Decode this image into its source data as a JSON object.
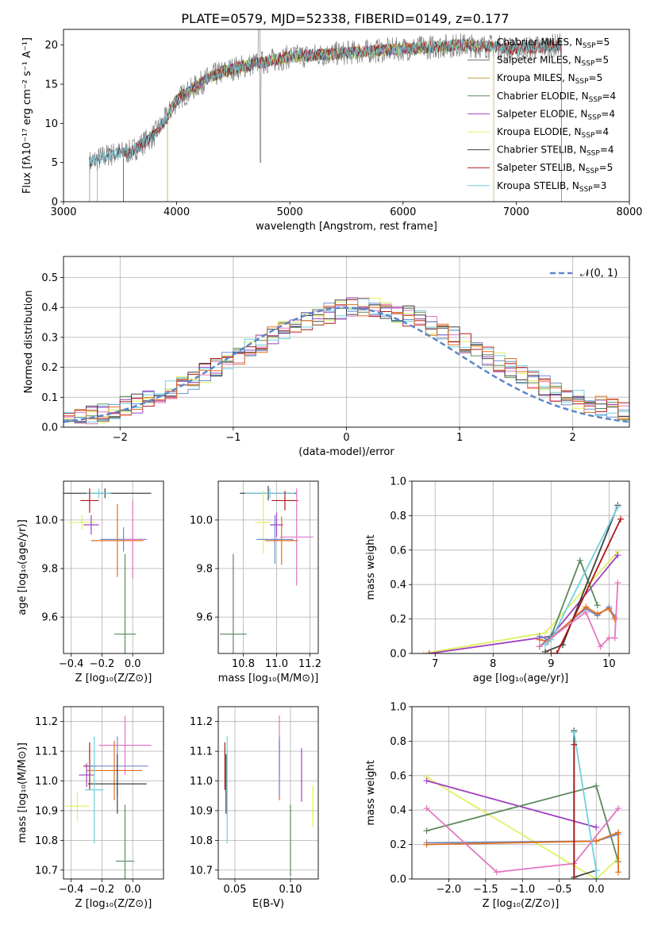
{
  "figure_title": "PLATE=0579, MJD=52338, FIBERID=0149, z=0.177",
  "model_colors": {
    "Chabrier MILES": "#8a8a8a",
    "Salpeter MILES": "#6f6f6f",
    "Kroupa MILES": "#c8a040",
    "Chabrier ELODIE": "#5b8a5b",
    "Salpeter ELODIE": "#a040c0",
    "Kroupa ELODIE": "#e0f060",
    "Chabrier STELIB": "#404040",
    "Salpeter STELIB": "#b01818",
    "Kroupa STELIB": "#70d0e0"
  },
  "chart_data": [
    {
      "id": "spectrum",
      "type": "line",
      "title": "",
      "xlabel": "wavelength [Angstrom, rest frame]",
      "ylabel": "Flux [fλ10⁻¹⁷ erg cm⁻² s⁻¹ A⁻¹]",
      "xlim": [
        3000,
        8000
      ],
      "ylim": [
        0,
        22
      ],
      "xticks": [
        "3000",
        "4000",
        "5000",
        "6000",
        "7000",
        "8000"
      ],
      "yticks": [
        "0",
        "5",
        "10",
        "15",
        "20"
      ],
      "grid": false,
      "legend_position": "top-right",
      "data_envelope": {
        "x": [
          3230,
          3400,
          3600,
          3800,
          3900,
          4000,
          4100,
          4300,
          4500,
          5000,
          5500,
          6000,
          6500,
          6800,
          7000,
          7400
        ],
        "y": [
          5.0,
          6.0,
          6.4,
          8.5,
          10.5,
          13.0,
          14.0,
          16.0,
          17.0,
          18.5,
          19.0,
          19.5,
          20.0,
          19.8,
          19.5,
          20.0
        ]
      },
      "model_x_range": [
        3230,
        7400
      ],
      "series": [
        {
          "name": "Chabrier MILES",
          "label_main": "Chabrier MILES, N",
          "label_sub": "SSP",
          "label_n": "=5",
          "x_start": 3300,
          "x_end": 7400
        },
        {
          "name": "Salpeter MILES",
          "label_main": "Salpeter MILES, N",
          "label_sub": "SSP",
          "label_n": "=5",
          "x_start": 3530,
          "x_end": 7400
        },
        {
          "name": "Kroupa MILES",
          "label_main": "Kroupa MILES, N",
          "label_sub": "SSP",
          "label_n": "=5",
          "x_start": 3920,
          "x_end": 6800
        },
        {
          "name": "Chabrier ELODIE",
          "label_main": "Chabrier ELODIE, N",
          "label_sub": "SSP",
          "label_n": "=4",
          "x_start": 3920,
          "x_end": 6800
        },
        {
          "name": "Salpeter ELODIE",
          "label_main": "Salpeter ELODIE, N",
          "label_sub": "SSP",
          "label_n": "=4",
          "x_start": 3920,
          "x_end": 6800
        },
        {
          "name": "Kroupa ELODIE",
          "label_main": "Kroupa ELODIE, N",
          "label_sub": "SSP",
          "label_n": "=4",
          "x_start": 3920,
          "x_end": 6800
        },
        {
          "name": "Chabrier STELIB",
          "label_main": "Chabrier STELIB, N",
          "label_sub": "SSP",
          "label_n": "=4",
          "x_start": 3230,
          "x_end": 7400
        },
        {
          "name": "Salpeter STELIB",
          "label_main": "Salpeter STELIB, N",
          "label_sub": "SSP",
          "label_n": "=5",
          "x_start": 3530,
          "x_end": 7400
        },
        {
          "name": "Kroupa STELIB",
          "label_main": "Kroupa STELIB, N",
          "label_sub": "SSP",
          "label_n": "=3",
          "x_start": 3230,
          "x_end": 7400
        }
      ]
    },
    {
      "id": "residuals",
      "type": "step",
      "title": "",
      "xlabel": "(data-model)/error",
      "ylabel": "Normed distribution",
      "xlim": [
        -2.5,
        2.5
      ],
      "ylim": [
        0,
        0.57
      ],
      "xticks": [
        "−2",
        "−1",
        "0",
        "1",
        "2"
      ],
      "yticks": [
        "0.0",
        "0.1",
        "0.2",
        "0.3",
        "0.4",
        "0.5"
      ],
      "grid": true,
      "legend_position": "top-right",
      "legend_label": "𝒩(0, 1)",
      "bin_width": 0.1,
      "bin_start": -2.5,
      "base": [
        0.02,
        0.03,
        0.04,
        0.05,
        0.06,
        0.07,
        0.08,
        0.09,
        0.1,
        0.12,
        0.14,
        0.16,
        0.18,
        0.2,
        0.22,
        0.24,
        0.26,
        0.28,
        0.3,
        0.32,
        0.34,
        0.36,
        0.37,
        0.38,
        0.39,
        0.4,
        0.4,
        0.4,
        0.39,
        0.38,
        0.37,
        0.36,
        0.34,
        0.32,
        0.3,
        0.28,
        0.26,
        0.24,
        0.22,
        0.2,
        0.18,
        0.16,
        0.14,
        0.12,
        0.1,
        0.09,
        0.08,
        0.07,
        0.06,
        0.05
      ],
      "series_colors": [
        "#e377c2",
        "#5b8a5b",
        "#e0f060",
        "#a040c0",
        "#b01818",
        "#70d0e0",
        "#6f8fd0",
        "#404040",
        "#e07020"
      ]
    },
    {
      "id": "age_vs_Z",
      "type": "errorbar",
      "title": "",
      "xlabel": "Z [log₁₀(Z/Z⊙)]",
      "ylabel": "age  [log₁₀(age/yr)]",
      "xlim": [
        -0.45,
        0.2
      ],
      "ylim": [
        9.45,
        10.16
      ],
      "xticks": [
        "−0.4",
        "−0.2",
        "0.0"
      ],
      "yticks": [
        "9.6",
        "9.8",
        "10.0"
      ],
      "grid": true,
      "points": [
        {
          "x": -0.18,
          "y": 10.11,
          "ex": 0.3,
          "ey": 0.02,
          "color": "#404040"
        },
        {
          "x": -0.22,
          "y": 10.11,
          "ex": 0.08,
          "ey": 0.02,
          "color": "#70d0e0"
        },
        {
          "x": -0.28,
          "y": 10.08,
          "ex": 0.06,
          "ey": 0.05,
          "color": "#b01818"
        },
        {
          "x": -0.33,
          "y": 9.99,
          "ex": 0.09,
          "ey": 0.03,
          "color": "#e0f060"
        },
        {
          "x": -0.27,
          "y": 9.98,
          "ex": 0.05,
          "ey": 0.04,
          "color": "#a040c0"
        },
        {
          "x": -0.06,
          "y": 9.92,
          "ex": 0.15,
          "ey": 0.05,
          "color": "#6f8fd0"
        },
        {
          "x": -0.1,
          "y": 9.915,
          "ex": 0.17,
          "ey": 0.15,
          "color": "#e07020"
        },
        {
          "x": 0.0,
          "y": 9.92,
          "ex": 0.06,
          "ey": 0.16,
          "color": "#e377c2"
        },
        {
          "x": -0.05,
          "y": 9.53,
          "ex": 0.07,
          "ey": 0.33,
          "color": "#5b8a5b"
        }
      ]
    },
    {
      "id": "age_vs_mass",
      "type": "errorbar",
      "title": "",
      "xlabel": "mass [log₁₀(M/M⊙)]",
      "ylabel": "",
      "xlim": [
        10.65,
        11.25
      ],
      "ylim": [
        9.45,
        10.16
      ],
      "xticks": [
        "10.8",
        "11.0",
        "11.2"
      ],
      "yticks": [
        "9.6",
        "9.8",
        "10.0"
      ],
      "grid": true,
      "points": [
        {
          "x": 10.95,
          "y": 10.11,
          "ex": 0.17,
          "ey": 0.03,
          "color": "#404040"
        },
        {
          "x": 10.96,
          "y": 10.11,
          "ex": 0.15,
          "ey": 0.02,
          "color": "#70d0e0"
        },
        {
          "x": 11.05,
          "y": 10.08,
          "ex": 0.08,
          "ey": 0.04,
          "color": "#b01818"
        },
        {
          "x": 10.92,
          "y": 9.99,
          "ex": 0.05,
          "ey": 0.13,
          "color": "#e0f060"
        },
        {
          "x": 11.0,
          "y": 9.98,
          "ex": 0.04,
          "ey": 0.05,
          "color": "#a040c0"
        },
        {
          "x": 10.99,
          "y": 9.92,
          "ex": 0.11,
          "ey": 0.1,
          "color": "#6f8fd0"
        },
        {
          "x": 11.03,
          "y": 9.915,
          "ex": 0.1,
          "ey": 0.1,
          "color": "#e07020"
        },
        {
          "x": 11.12,
          "y": 9.93,
          "ex": 0.1,
          "ey": 0.2,
          "color": "#e377c2"
        },
        {
          "x": 10.74,
          "y": 9.53,
          "ex": 0.08,
          "ey": 0.33,
          "color": "#5b8a5b"
        }
      ]
    },
    {
      "id": "weight_vs_age",
      "type": "line",
      "title": "",
      "xlabel": "age  [log₁₀(age/yr)]",
      "ylabel": "mass weight",
      "xlim": [
        6.6,
        10.35
      ],
      "ylim": [
        0,
        1
      ],
      "xticks": [
        "7",
        "8",
        "9",
        "10"
      ],
      "yticks": [
        "0.0",
        "0.2",
        "0.4",
        "0.6",
        "0.8",
        "1.0"
      ],
      "grid": true,
      "series": [
        {
          "color": "#e0f060",
          "x": [
            6.8,
            8.9,
            10.15
          ],
          "y": [
            0.0,
            0.12,
            0.59
          ]
        },
        {
          "color": "#a040c0",
          "x": [
            6.9,
            9.0,
            10.15
          ],
          "y": [
            0.0,
            0.1,
            0.57
          ]
        },
        {
          "color": "#6f8fd0",
          "x": [
            8.8,
            8.95,
            9.6,
            9.8,
            10.0,
            10.1
          ],
          "y": [
            0.1,
            0.08,
            0.26,
            0.22,
            0.27,
            0.21
          ]
        },
        {
          "color": "#e07020",
          "x": [
            8.8,
            8.95,
            9.6,
            9.8,
            10.0,
            10.1
          ],
          "y": [
            0.08,
            0.07,
            0.27,
            0.23,
            0.26,
            0.2
          ]
        },
        {
          "color": "#5b8a5b",
          "x": [
            8.8,
            9.0,
            9.5,
            9.8
          ],
          "y": [
            0.04,
            0.1,
            0.54,
            0.28
          ]
        },
        {
          "color": "#404040",
          "x": [
            8.9,
            9.2,
            10.15
          ],
          "y": [
            0.01,
            0.05,
            0.86
          ]
        },
        {
          "color": "#70d0e0",
          "x": [
            8.9,
            9.0,
            10.15
          ],
          "y": [
            0.05,
            0.08,
            0.85
          ]
        },
        {
          "color": "#b01818",
          "x": [
            9.0,
            9.1,
            10.2
          ],
          "y": [
            0.0,
            0.0,
            0.78
          ]
        },
        {
          "color": "#e377c2",
          "x": [
            8.8,
            9.6,
            9.85,
            10.0,
            10.1,
            10.15
          ],
          "y": [
            0.04,
            0.24,
            0.04,
            0.09,
            0.09,
            0.41
          ]
        }
      ]
    },
    {
      "id": "mass_vs_Z",
      "type": "errorbar",
      "title": "",
      "xlabel": "Z [log₁₀(Z/Z⊙)]",
      "ylabel": "mass [log₁₀(M/M⊙)]",
      "xlim": [
        -0.45,
        0.2
      ],
      "ylim": [
        10.67,
        11.25
      ],
      "xticks": [
        "−0.4",
        "−0.2",
        "0.0"
      ],
      "yticks": [
        "10.7",
        "10.8",
        "10.9",
        "11.0",
        "11.1",
        "11.2"
      ],
      "grid": true,
      "points": [
        {
          "x": -0.05,
          "y": 11.12,
          "ex": 0.17,
          "ey": 0.1,
          "color": "#e377c2"
        },
        {
          "x": -0.28,
          "y": 11.05,
          "ex": 0.04,
          "ey": 0.08,
          "color": "#b01818"
        },
        {
          "x": -0.1,
          "y": 11.05,
          "ex": 0.2,
          "ey": 0.1,
          "color": "#6f8fd0"
        },
        {
          "x": -0.12,
          "y": 11.035,
          "ex": 0.18,
          "ey": 0.1,
          "color": "#e07020"
        },
        {
          "x": -0.3,
          "y": 11.02,
          "ex": 0.05,
          "ey": 0.04,
          "color": "#a040c0"
        },
        {
          "x": -0.1,
          "y": 10.99,
          "ex": 0.19,
          "ey": 0.1,
          "color": "#404040"
        },
        {
          "x": -0.25,
          "y": 10.97,
          "ex": 0.06,
          "ey": 0.18,
          "color": "#70d0e0"
        },
        {
          "x": -0.36,
          "y": 10.915,
          "ex": 0.08,
          "ey": 0.05,
          "color": "#e0f060"
        },
        {
          "x": -0.05,
          "y": 10.73,
          "ex": 0.06,
          "ey": 0.19,
          "color": "#5b8a5b"
        }
      ]
    },
    {
      "id": "mass_vs_ebv",
      "type": "errorbar",
      "title": "",
      "xlabel": "E(B-V)",
      "ylabel": "",
      "xlim": [
        0.035,
        0.125
      ],
      "ylim": [
        10.67,
        11.25
      ],
      "xticks": [
        "0.05",
        "0.10"
      ],
      "yticks": [
        "10.7",
        "10.8",
        "10.9",
        "11.0",
        "11.1",
        "11.2"
      ],
      "grid": true,
      "points": [
        {
          "x": 0.041,
          "y": 11.05,
          "ex": 0.0,
          "ey": 0.08,
          "color": "#b01818"
        },
        {
          "x": 0.042,
          "y": 10.99,
          "ex": 0.0,
          "ey": 0.1,
          "color": "#404040"
        },
        {
          "x": 0.043,
          "y": 10.97,
          "ex": 0.0,
          "ey": 0.18,
          "color": "#70d0e0"
        },
        {
          "x": 0.09,
          "y": 11.12,
          "ex": 0.0,
          "ey": 0.1,
          "color": "#e377c2"
        },
        {
          "x": 0.09,
          "y": 11.035,
          "ex": 0.0,
          "ey": 0.1,
          "color": "#e07020"
        },
        {
          "x": 0.09,
          "y": 11.05,
          "ex": 0.0,
          "ey": 0.1,
          "color": "#6f8fd0"
        },
        {
          "x": 0.1,
          "y": 10.8,
          "ex": 0.0,
          "ey": 0.12,
          "color": "#5b8a5b"
        },
        {
          "x": 0.11,
          "y": 11.02,
          "ex": 0.0,
          "ey": 0.09,
          "color": "#a040c0"
        },
        {
          "x": 0.12,
          "y": 10.915,
          "ex": 0.0,
          "ey": 0.07,
          "color": "#e0f060"
        }
      ]
    },
    {
      "id": "weight_vs_Z",
      "type": "line",
      "title": "",
      "xlabel": "Z [log₁₀(Z/Z⊙)]",
      "ylabel": "mass weight",
      "xlim": [
        -2.5,
        0.45
      ],
      "ylim": [
        0,
        1
      ],
      "xticks": [
        "−2.0",
        "−1.5",
        "−1.0",
        "−0.5",
        "0.0"
      ],
      "yticks": [
        "0.0",
        "0.2",
        "0.4",
        "0.6",
        "0.8",
        "1.0"
      ],
      "grid": true,
      "series": [
        {
          "color": "#e0f060",
          "x": [
            -2.3,
            0.0,
            0.3
          ],
          "y": [
            0.59,
            0.0,
            0.12
          ]
        },
        {
          "color": "#a040c0",
          "x": [
            -2.3,
            0.0
          ],
          "y": [
            0.57,
            0.3
          ]
        },
        {
          "color": "#5b8a5b",
          "x": [
            -2.3,
            0.0,
            0.3
          ],
          "y": [
            0.28,
            0.54,
            0.1
          ]
        },
        {
          "color": "#6f8fd0",
          "x": [
            -2.3,
            0.0,
            0.3
          ],
          "y": [
            0.21,
            0.22,
            0.26
          ]
        },
        {
          "color": "#e07020",
          "x": [
            -2.3,
            0.0,
            0.3,
            0.3
          ],
          "y": [
            0.2,
            0.22,
            0.27,
            0.04
          ]
        },
        {
          "color": "#e377c2",
          "x": [
            -2.3,
            -1.35,
            -0.3,
            0.3
          ],
          "y": [
            0.41,
            0.04,
            0.09,
            0.41
          ]
        },
        {
          "color": "#404040",
          "x": [
            -0.3,
            -0.3,
            0.0
          ],
          "y": [
            0.86,
            0.01,
            0.05
          ]
        },
        {
          "color": "#70d0e0",
          "x": [
            -0.3,
            0.0,
            0.0
          ],
          "y": [
            0.85,
            0.05,
            0.0
          ]
        },
        {
          "color": "#b01818",
          "x": [
            -0.3,
            -0.3
          ],
          "y": [
            0.78,
            0.0
          ]
        }
      ]
    }
  ]
}
